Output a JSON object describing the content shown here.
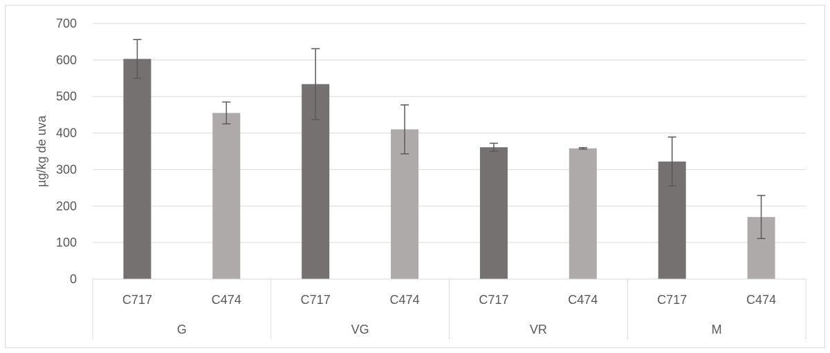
{
  "chart_data": {
    "type": "bar",
    "title": "",
    "ylabel": "µg/kg de uva",
    "ylim": [
      0,
      700
    ],
    "yticks": [
      0,
      100,
      200,
      300,
      400,
      500,
      600,
      700
    ],
    "grid": true,
    "groups": [
      {
        "label": "G",
        "bars": [
          {
            "category": "C717",
            "value": 603,
            "error": 53,
            "color": "#767171"
          },
          {
            "category": "C474",
            "value": 455,
            "error": 30,
            "color": "#AEAAAA"
          }
        ]
      },
      {
        "label": "VG",
        "bars": [
          {
            "category": "C717",
            "value": 534,
            "error": 97,
            "color": "#767171"
          },
          {
            "category": "C474",
            "value": 410,
            "error": 67,
            "color": "#AEAAAA"
          }
        ]
      },
      {
        "label": "VR",
        "bars": [
          {
            "category": "C717",
            "value": 361,
            "error": 11,
            "color": "#767171"
          },
          {
            "category": "C474",
            "value": 358,
            "error": 2,
            "color": "#AEAAAA"
          }
        ]
      },
      {
        "label": "M",
        "bars": [
          {
            "category": "C717",
            "value": 322,
            "error": 67,
            "color": "#767171"
          },
          {
            "category": "C474",
            "value": 170,
            "error": 59,
            "color": "#AEAAAA"
          }
        ]
      }
    ]
  }
}
